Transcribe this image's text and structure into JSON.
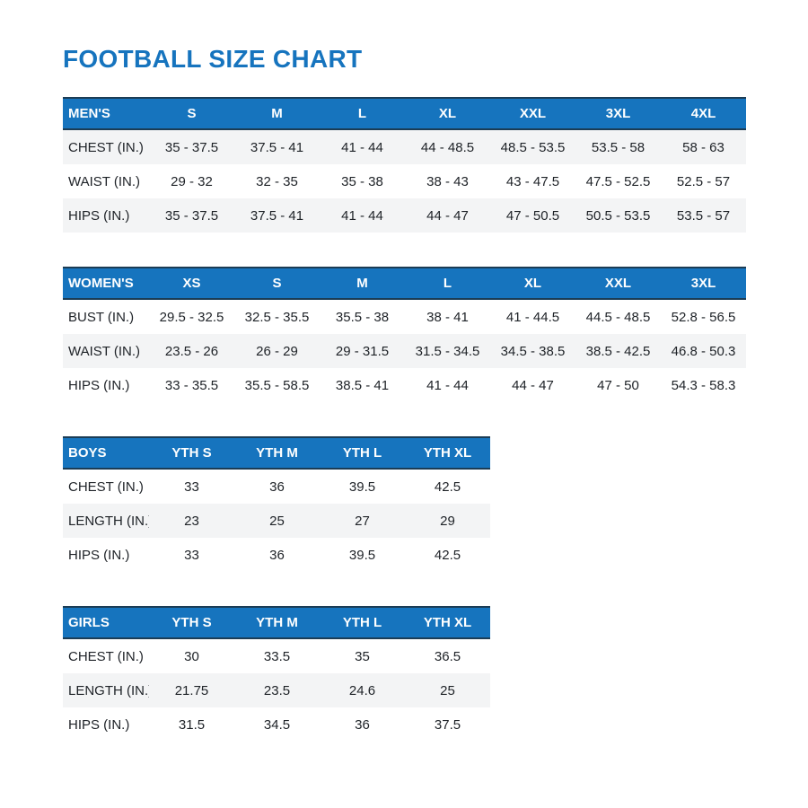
{
  "page": {
    "title": "FOOTBALL SIZE CHART"
  },
  "colors": {
    "accent_blue": "#1674BE",
    "header_text": "#FFFFFF",
    "header_border": "#1B3C55",
    "row_shade": "#F3F4F5",
    "body_text": "#1E2227"
  },
  "tables": [
    {
      "id": "mens",
      "header": [
        "MEN'S",
        "S",
        "M",
        "L",
        "XL",
        "XXL",
        "3XL",
        "4XL"
      ],
      "rows": [
        {
          "label": "CHEST (IN.)",
          "shaded": true,
          "values": [
            "35 - 37.5",
            "37.5 - 41",
            "41 - 44",
            "44 - 48.5",
            "48.5 - 53.5",
            "53.5 - 58",
            "58 - 63"
          ]
        },
        {
          "label": "WAIST (IN.)",
          "shaded": false,
          "values": [
            "29 - 32",
            "32 - 35",
            "35 - 38",
            "38 - 43",
            "43 - 47.5",
            "47.5 - 52.5",
            "52.5 - 57"
          ]
        },
        {
          "label": "HIPS (IN.)",
          "shaded": true,
          "values": [
            "35 - 37.5",
            "37.5 - 41",
            "41 - 44",
            "44 - 47",
            "47 - 50.5",
            "50.5 - 53.5",
            "53.5 - 57"
          ]
        }
      ]
    },
    {
      "id": "womens",
      "header": [
        "WOMEN'S",
        "XS",
        "S",
        "M",
        "L",
        "XL",
        "XXL",
        "3XL"
      ],
      "rows": [
        {
          "label": "BUST (IN.)",
          "shaded": false,
          "values": [
            "29.5 - 32.5",
            "32.5 - 35.5",
            "35.5 - 38",
            "38 - 41",
            "41 - 44.5",
            "44.5 - 48.5",
            "52.8 - 56.5"
          ]
        },
        {
          "label": "WAIST (IN.)",
          "shaded": true,
          "values": [
            "23.5 - 26",
            "26 - 29",
            "29 - 31.5",
            "31.5 - 34.5",
            "34.5 - 38.5",
            "38.5 - 42.5",
            "46.8 - 50.3"
          ]
        },
        {
          "label": "HIPS (IN.)",
          "shaded": false,
          "values": [
            "33 - 35.5",
            "35.5 - 58.5",
            "38.5 - 41",
            "41 - 44",
            "44 - 47",
            "47 - 50",
            "54.3 - 58.3"
          ]
        }
      ]
    },
    {
      "id": "boys",
      "header": [
        "BOYS",
        "YTH S",
        "YTH M",
        "YTH L",
        "YTH XL"
      ],
      "rows": [
        {
          "label": "CHEST (IN.)",
          "shaded": false,
          "values": [
            "33",
            "36",
            "39.5",
            "42.5"
          ]
        },
        {
          "label": "LENGTH (IN.)",
          "shaded": true,
          "values": [
            "23",
            "25",
            "27",
            "29"
          ]
        },
        {
          "label": "HIPS (IN.)",
          "shaded": false,
          "values": [
            "33",
            "36",
            "39.5",
            "42.5"
          ]
        }
      ]
    },
    {
      "id": "girls",
      "header": [
        "GIRLS",
        "YTH S",
        "YTH M",
        "YTH L",
        "YTH XL"
      ],
      "rows": [
        {
          "label": "CHEST (IN.)",
          "shaded": false,
          "values": [
            "30",
            "33.5",
            "35",
            "36.5"
          ]
        },
        {
          "label": "LENGTH (IN.)",
          "shaded": true,
          "values": [
            "21.75",
            "23.5",
            "24.6",
            "25"
          ]
        },
        {
          "label": "HIPS (IN.)",
          "shaded": false,
          "values": [
            "31.5",
            "34.5",
            "36",
            "37.5"
          ]
        }
      ]
    }
  ]
}
